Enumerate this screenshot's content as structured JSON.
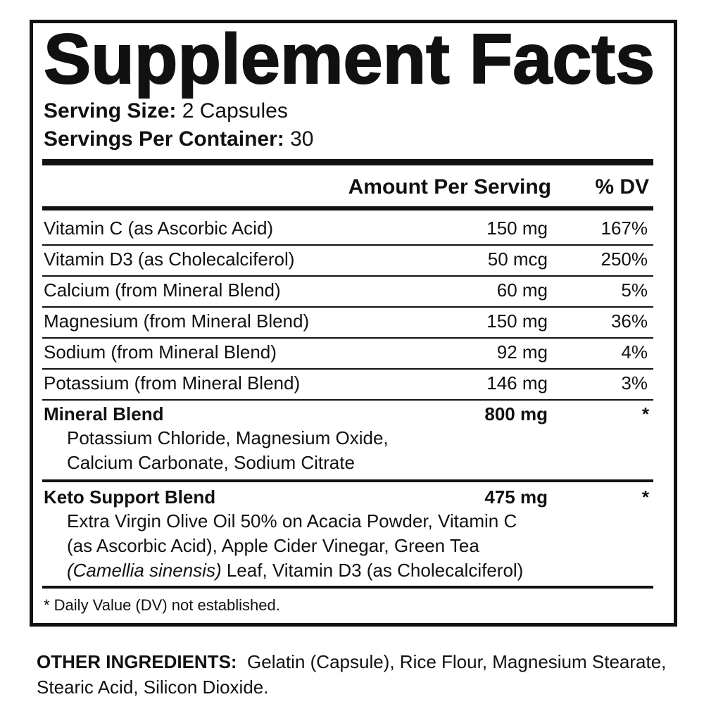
{
  "title": "Supplement Facts",
  "serving_size": {
    "label": "Serving Size:",
    "value": "2 Capsules"
  },
  "servings_per_container": {
    "label": "Servings Per Container:",
    "value": "30"
  },
  "table": {
    "header": [
      "Amount Per Serving",
      "% DV"
    ],
    "rows": [
      [
        "Vitamin C (as Ascorbic Acid)",
        "150 mg",
        "167%"
      ],
      [
        "Vitamin D3 (as Cholecalciferol)",
        "50 mcg",
        "250%"
      ],
      [
        "Calcium (from Mineral Blend)",
        "60 mg",
        "5%"
      ],
      [
        "Magnesium (from Mineral Blend)",
        "150 mg",
        "36%"
      ],
      [
        "Sodium (from Mineral Blend)",
        "92 mg",
        "4%"
      ],
      [
        "Potassium (from Mineral Blend)",
        "146 mg",
        "3%"
      ]
    ]
  },
  "blends": [
    {
      "name": "Mineral Blend",
      "amount": "800 mg",
      "dv": "*",
      "ingredients": [
        "Potassium Chloride, Magnesium Oxide,",
        "Calcium Carbonate, Sodium Citrate"
      ]
    },
    {
      "name": "Keto Support Blend",
      "amount": "475 mg",
      "dv": "*",
      "ingredients": [
        "Extra Virgin Olive Oil 50% on Acacia Powder, Vitamin C",
        "(as Ascorbic Acid), Apple Cider Vinegar, Green Tea",
        [
          "(Camellia sinensis)",
          " Leaf, Vitamin D3 (as Cholecalciferol)"
        ]
      ]
    }
  ],
  "footnote": "* Daily Value (DV) not established.",
  "other_ingredients": {
    "label": "OTHER INGREDIENTS:",
    "text": "Gelatin (Capsule), Rice Flour, Magnesium Stearate, Stearic Acid, Silicon Dioxide."
  }
}
